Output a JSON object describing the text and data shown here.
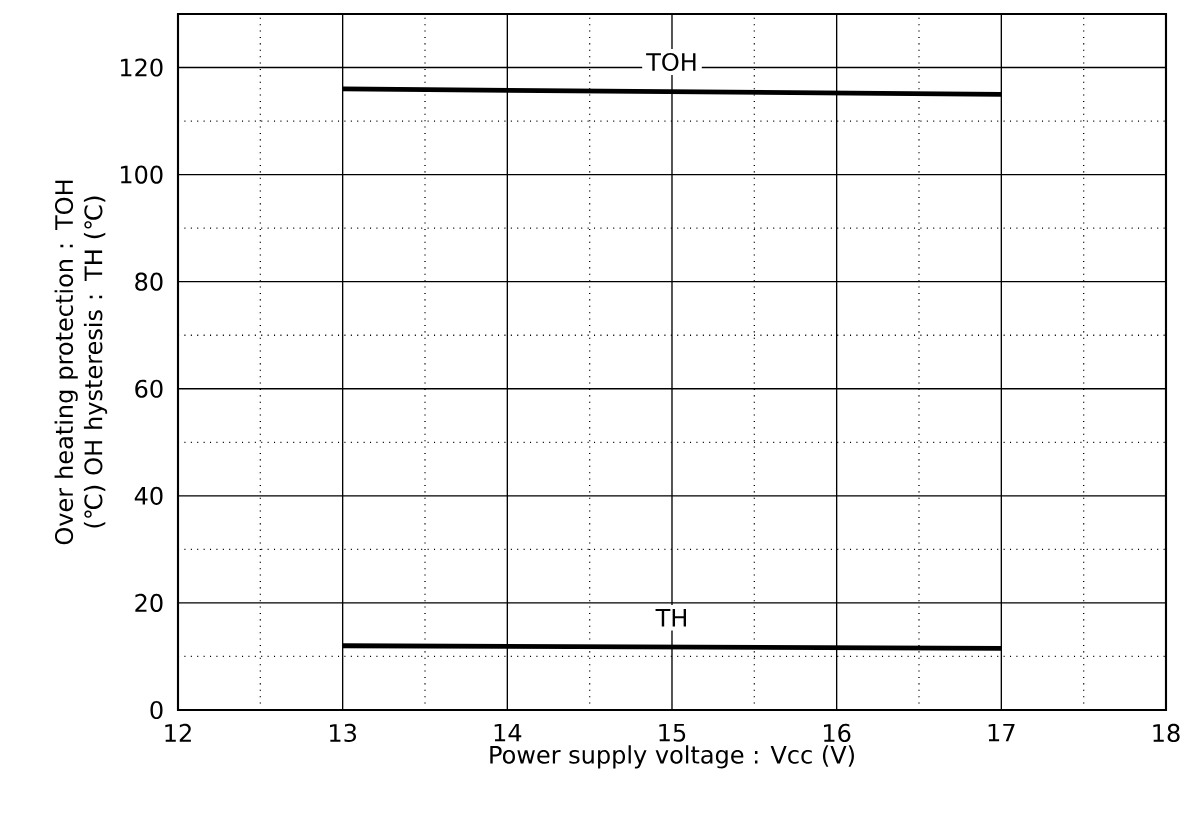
{
  "chart_data": {
    "type": "line",
    "xlabel": "Power supply voltage : Vcc (V)",
    "ylabel": "Over heating protection : TOH (℃) OH hysteresis : TH (℃)",
    "x": [
      13,
      17
    ],
    "series": [
      {
        "name": "TOH",
        "color": "#000000",
        "values": [
          116,
          115
        ]
      },
      {
        "name": "TH",
        "color": "#000000",
        "values": [
          12,
          11.5
        ]
      }
    ],
    "xlim": [
      12,
      18
    ],
    "xticks": [
      12,
      13,
      14,
      15,
      16,
      17,
      18
    ],
    "ylim": [
      0,
      130
    ],
    "yticks": [
      0,
      20,
      40,
      60,
      80,
      100,
      120
    ],
    "grid": true,
    "marker": "none",
    "line_style": "solid"
  }
}
